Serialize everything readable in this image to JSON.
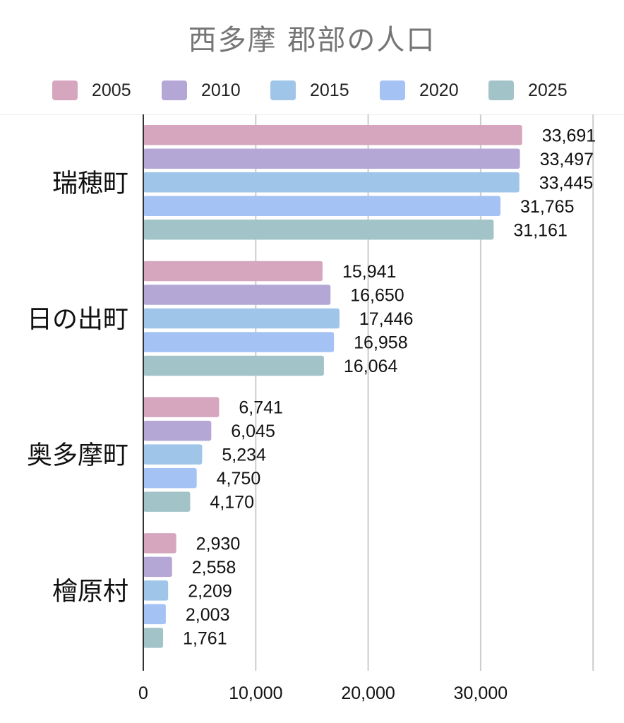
{
  "chart_data": {
    "type": "bar",
    "orientation": "horizontal",
    "title": "西多摩 郡部の人口",
    "categories": [
      "瑞穂町",
      "日の出町",
      "奥多摩町",
      "檜原村"
    ],
    "series": [
      {
        "name": "2005",
        "color": "#d5a6bd",
        "values": [
          33691,
          15941,
          6741,
          2930
        ],
        "labels": [
          "33,691",
          "15,941",
          "6,741",
          "2,930"
        ]
      },
      {
        "name": "2010",
        "color": "#b4a7d6",
        "values": [
          33497,
          16650,
          6045,
          2558
        ],
        "labels": [
          "33,497",
          "16,650",
          "6,045",
          "2,558"
        ]
      },
      {
        "name": "2015",
        "color": "#9fc5e8",
        "values": [
          33445,
          17446,
          5234,
          2209
        ],
        "labels": [
          "33,445",
          "17,446",
          "5,234",
          "2,209"
        ]
      },
      {
        "name": "2020",
        "color": "#a4c2f4",
        "values": [
          31765,
          16958,
          4750,
          2003
        ],
        "labels": [
          "31,765",
          "16,958",
          "4,750",
          "2,003"
        ]
      },
      {
        "name": "2025",
        "color": "#a2c4c9",
        "values": [
          31161,
          16064,
          4170,
          1761
        ],
        "labels": [
          "31,161",
          "16,064",
          "4,170",
          "1,761"
        ]
      }
    ],
    "x_ticks": [
      0,
      10000,
      20000,
      30000
    ],
    "x_tick_labels": [
      "0",
      "10,000",
      "20,000",
      "30,000"
    ],
    "xlim": [
      0,
      40000
    ],
    "grid": true,
    "legend_position": "top"
  }
}
